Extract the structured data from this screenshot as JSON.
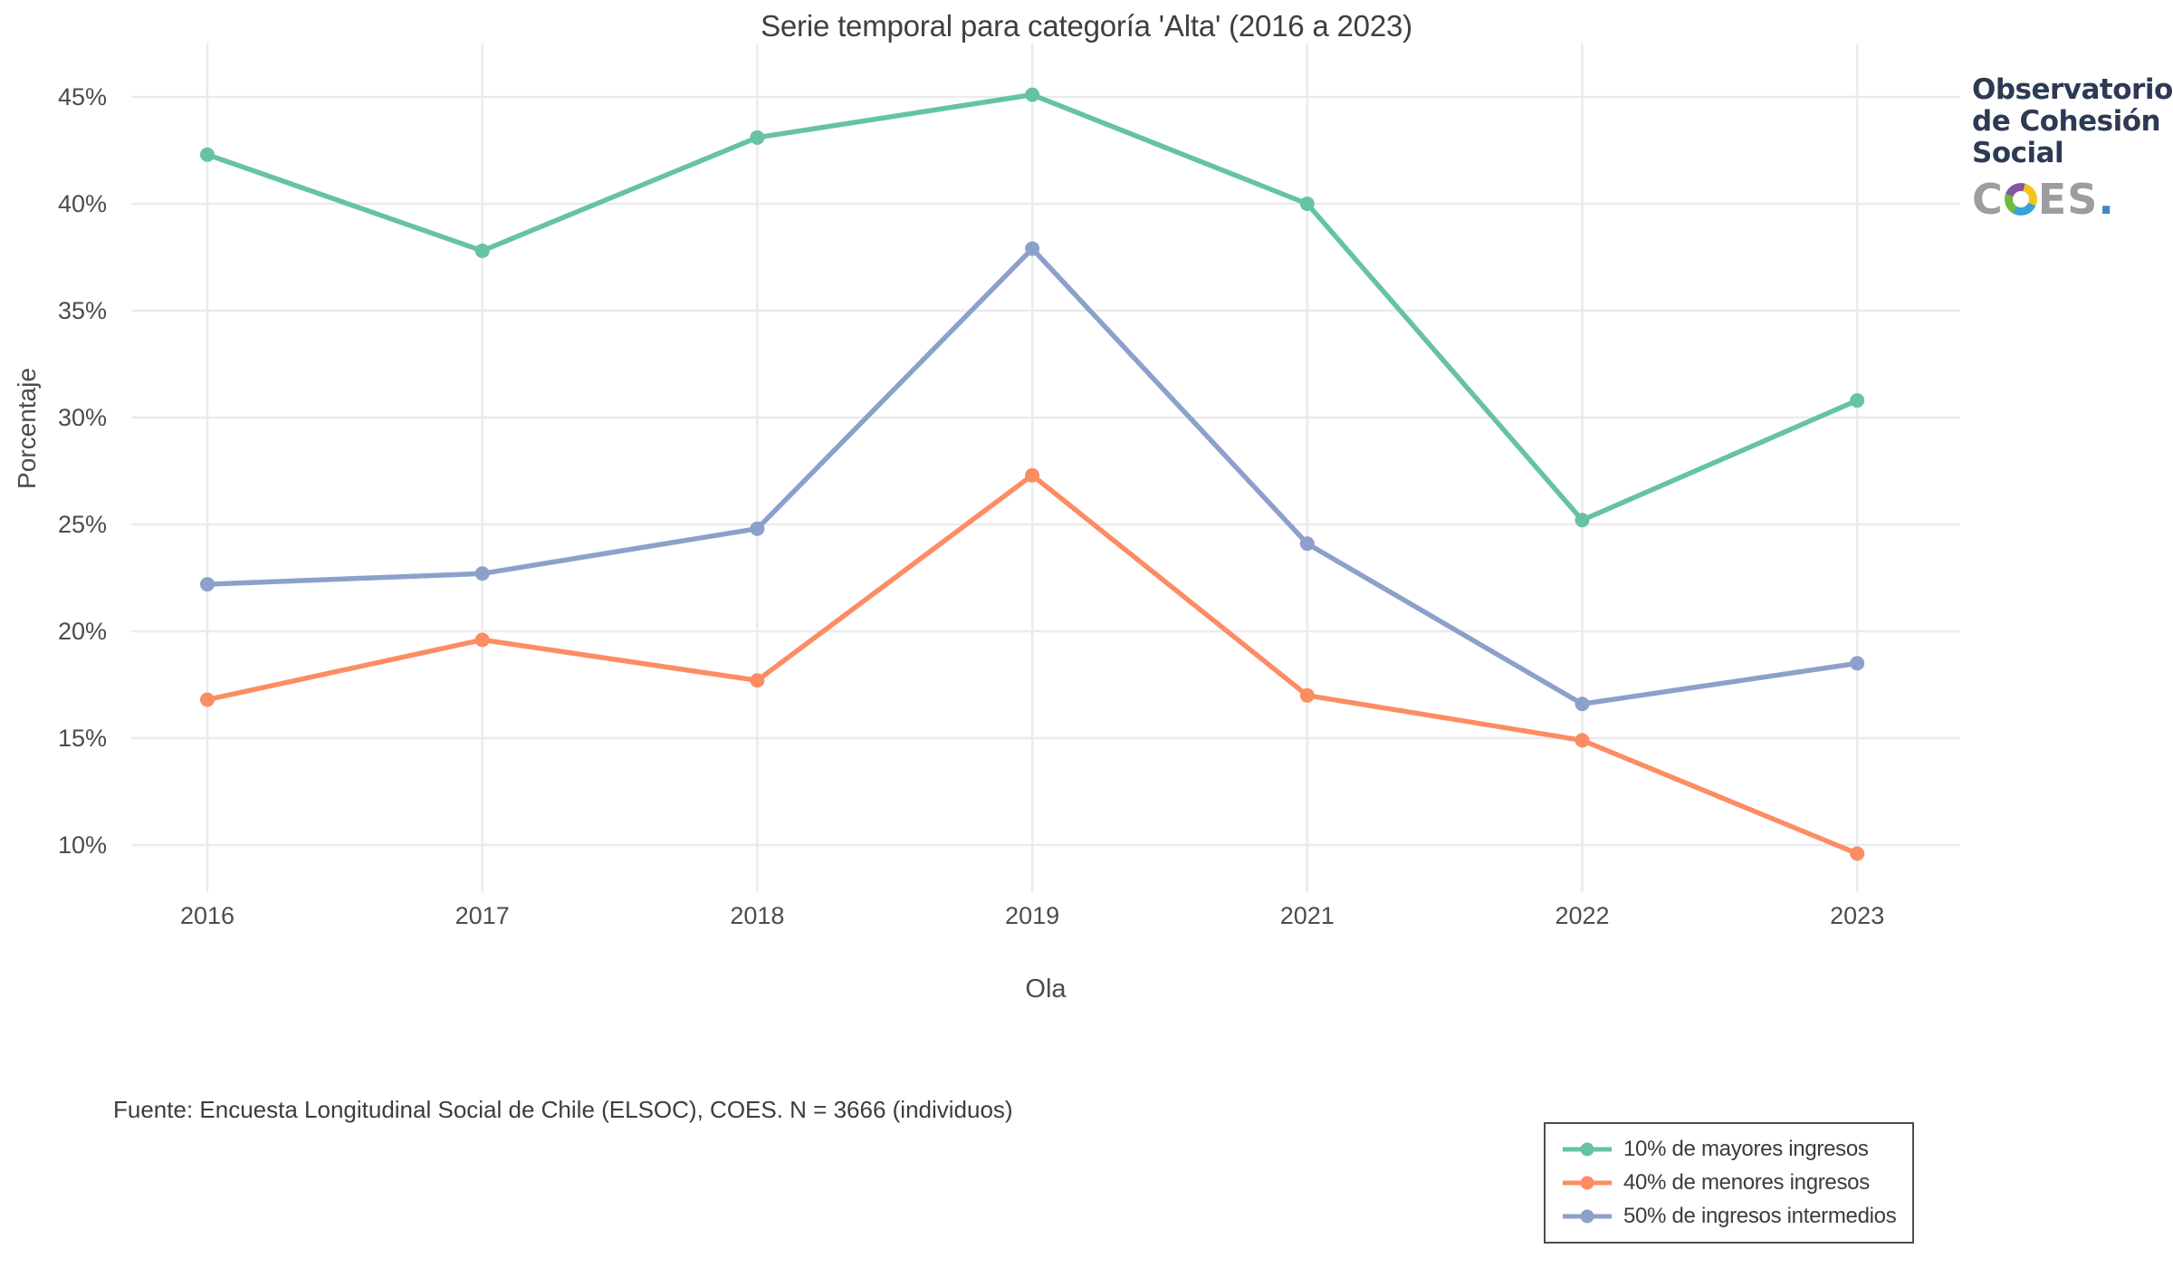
{
  "footer": {
    "source": "Fuente: Encuesta Longitudinal Social de Chile (ELSOC), COES. N = 3666 (individuos)"
  },
  "logo": {
    "lines": [
      "Observatorio",
      "de Cohesión",
      "Social"
    ],
    "coes_c": "C",
    "coes_es": "ES",
    "coes_dot": ".",
    "text_color": "#2d3a53",
    "wordmark_color": "#9d9da0",
    "dot_color": "#4285c9",
    "ring_colors": [
      "#f2c41d",
      "#38a3d8",
      "#70bb3f",
      "#8656a2"
    ]
  },
  "colors": {
    "grid": "#ebebeb",
    "text": "#4c4c4c",
    "title": "#3f3f3f"
  },
  "chart_data": {
    "type": "line",
    "title": "Serie temporal para categoría 'Alta' (2016 a 2023)",
    "xlabel": "Ola",
    "ylabel": "Porcentaje",
    "categories": [
      "2016",
      "2017",
      "2018",
      "2019",
      "2021",
      "2022",
      "2023"
    ],
    "yticks": [
      "45%",
      "40%",
      "35%",
      "30%",
      "25%",
      "20%",
      "15%",
      "10%"
    ],
    "ytick_values": [
      45,
      40,
      35,
      30,
      25,
      20,
      15,
      10
    ],
    "ylim": [
      7.5,
      47.5
    ],
    "grid": true,
    "legend_position": "bottom-right",
    "series": [
      {
        "name": "10% de mayores ingresos",
        "color": "#66c2a5",
        "values": [
          42.3,
          37.8,
          43.1,
          45.1,
          40.0,
          25.2,
          30.8
        ]
      },
      {
        "name": "40% de menores ingresos",
        "color": "#fc8d62",
        "values": [
          16.8,
          19.6,
          17.7,
          27.3,
          17.0,
          14.9,
          9.6
        ]
      },
      {
        "name": "50% de ingresos intermedios",
        "color": "#8da0cb",
        "values": [
          22.2,
          22.7,
          24.8,
          37.9,
          24.1,
          16.6,
          18.5
        ]
      }
    ]
  }
}
